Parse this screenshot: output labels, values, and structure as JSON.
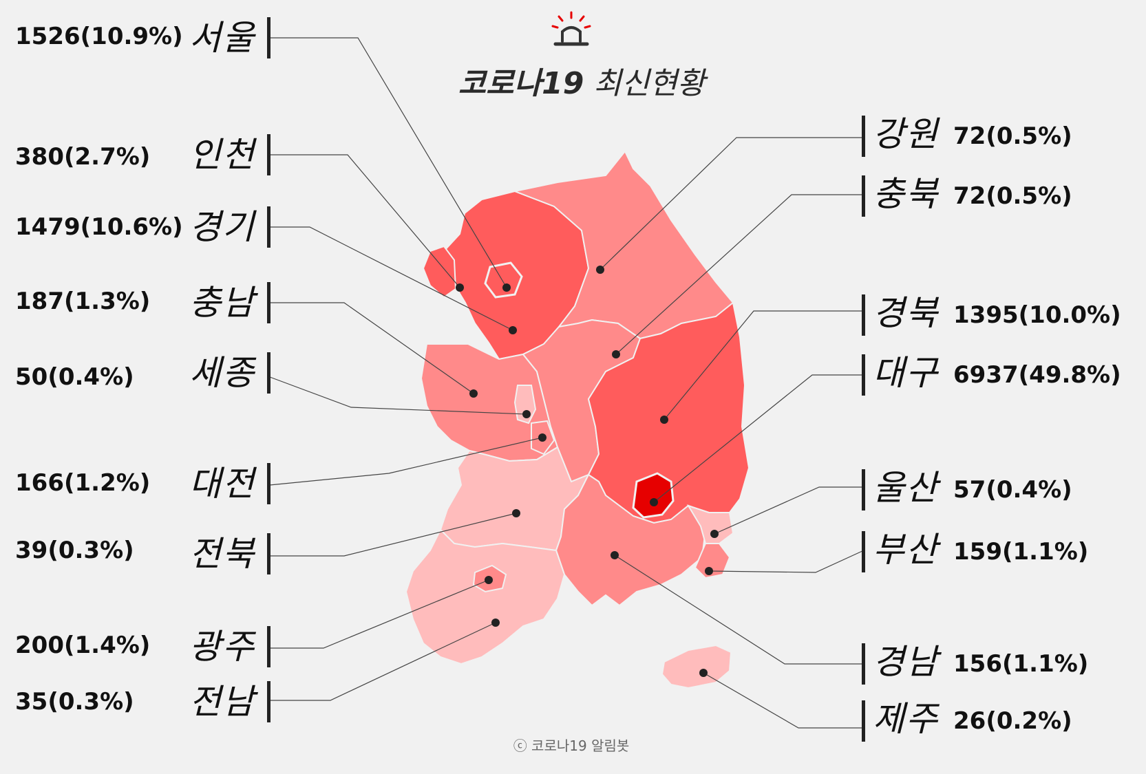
{
  "title": {
    "part1": "코로나19",
    "part2": "최신현황"
  },
  "copyright": "ⓒ 코로나19 알림봇",
  "title_icon": "siren-icon",
  "colors": {
    "background": "#f1f1f1",
    "level_max": "#e60000",
    "level_high": "#ff5c5c",
    "level_mid": "#ff8a8a",
    "level_low": "#ffbcbc",
    "line": "#444444"
  },
  "regions": [
    {
      "id": "seoul",
      "name": "서울",
      "value": "1526(10.9%)",
      "level": "high"
    },
    {
      "id": "incheon",
      "name": "인천",
      "value": "380(2.7%)",
      "level": "high"
    },
    {
      "id": "gyeonggi",
      "name": "경기",
      "value": "1479(10.6%)",
      "level": "high"
    },
    {
      "id": "chungnam",
      "name": "충남",
      "value": "187(1.3%)",
      "level": "mid"
    },
    {
      "id": "sejong",
      "name": "세종",
      "value": "50(0.4%)",
      "level": "low"
    },
    {
      "id": "daejeon",
      "name": "대전",
      "value": "166(1.2%)",
      "level": "mid"
    },
    {
      "id": "jeonbuk",
      "name": "전북",
      "value": "39(0.3%)",
      "level": "low"
    },
    {
      "id": "gwangju",
      "name": "광주",
      "value": "200(1.4%)",
      "level": "mid"
    },
    {
      "id": "jeonnam",
      "name": "전남",
      "value": "35(0.3%)",
      "level": "low"
    },
    {
      "id": "gangwon",
      "name": "강원",
      "value": "72(0.5%)",
      "level": "mid"
    },
    {
      "id": "chungbuk",
      "name": "충북",
      "value": "72(0.5%)",
      "level": "mid"
    },
    {
      "id": "gyeongbuk",
      "name": "경북",
      "value": "1395(10.0%)",
      "level": "high"
    },
    {
      "id": "daegu",
      "name": "대구",
      "value": "6937(49.8%)",
      "level": "max"
    },
    {
      "id": "ulsan",
      "name": "울산",
      "value": "57(0.4%)",
      "level": "low"
    },
    {
      "id": "busan",
      "name": "부산",
      "value": "159(1.1%)",
      "level": "mid"
    },
    {
      "id": "gyeongnam",
      "name": "경남",
      "value": "156(1.1%)",
      "level": "mid"
    },
    {
      "id": "jeju",
      "name": "제주",
      "value": "26(0.2%)",
      "level": "low"
    }
  ]
}
